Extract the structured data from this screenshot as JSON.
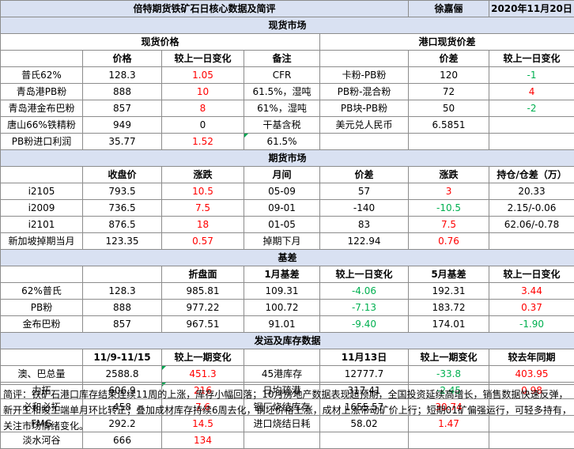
{
  "header": {
    "title": "倍特期货铁矿石日核心数据及简评",
    "author": "徐嘉俪",
    "date": "2020年11月20日"
  },
  "spot": {
    "section": "现货市场",
    "left_title": "现货价格",
    "right_title": "港口现货价差",
    "cols": [
      "",
      "价格",
      "较上一日变化",
      "备注",
      "",
      "价差",
      "较上一日变化"
    ],
    "rows": [
      [
        "普氏62%",
        "128.3",
        "1.05",
        "CFR",
        "卡粉-PB粉",
        "120",
        "-1"
      ],
      [
        "青岛港PB粉",
        "888",
        "10",
        "61.5%，湿吨",
        "PB粉-混合粉",
        "72",
        "4"
      ],
      [
        "青岛港金布巴粉",
        "857",
        "8",
        "61%，湿吨",
        "PB块-PB粉",
        "50",
        "-2"
      ],
      [
        "唐山66%铁精粉",
        "949",
        "0",
        "干基含税",
        "美元兑人民币",
        "6.5851",
        ""
      ],
      [
        "PB粉进口利润",
        "35.77",
        "1.52",
        "61.5%",
        "",
        "",
        ""
      ]
    ]
  },
  "futures": {
    "section": "期货市场",
    "cols": [
      "",
      "收盘价",
      "涨跌",
      "月间",
      "价差",
      "涨跌",
      "持仓/仓差（万）"
    ],
    "rows": [
      [
        "i2105",
        "793.5",
        "10.5",
        "05-09",
        "57",
        "3",
        "20.33"
      ],
      [
        "i2009",
        "736.5",
        "7.5",
        "09-01",
        "-140",
        "-10.5",
        "2.15/-0.06"
      ],
      [
        "i2101",
        "876.5",
        "18",
        "01-05",
        "83",
        "7.5",
        "62.06/-0.78"
      ],
      [
        "新加坡掉期当月",
        "123.35",
        "0.57",
        "掉期下月",
        "122.94",
        "0.76",
        ""
      ]
    ]
  },
  "basis": {
    "section": "基差",
    "cols": [
      "",
      "",
      "折盘面",
      "1月基差",
      "较上一日变化",
      "5月基差",
      "较上一日变化"
    ],
    "rows": [
      [
        "62%普氏",
        "128.3",
        "985.81",
        "109.31",
        "-4.06",
        "192.31",
        "3.44"
      ],
      [
        "PB粉",
        "888",
        "977.22",
        "100.72",
        "-7.13",
        "183.72",
        "0.37"
      ],
      [
        "金布巴粉",
        "857",
        "967.51",
        "91.01",
        "-9.40",
        "174.01",
        "-1.90"
      ]
    ]
  },
  "inventory": {
    "section": "发运及库存数据",
    "cols": [
      "",
      "11/9-11/15",
      "较上一期变化",
      "",
      "11月13日",
      "较上一期变化",
      "较去年同期"
    ],
    "rows": [
      [
        "澳、巴总量",
        "2588.8",
        "451.3",
        "45港库存",
        "12777.7",
        "-33.8",
        "403.95"
      ],
      [
        "力拓",
        "606.9",
        "216",
        "日均疏港",
        "317.41",
        "-2.45",
        "0.98"
      ],
      [
        "必和必拓",
        "458",
        "7.6",
        "钢厂烧结库存",
        "1655.57",
        "30.74",
        ""
      ],
      [
        "FMG",
        "292.2",
        "14.5",
        "进口烧结日耗",
        "58.02",
        "1.47",
        ""
      ],
      [
        "淡水河谷",
        "666",
        "134",
        "",
        "",
        "",
        ""
      ]
    ]
  },
  "note": "简评：铁矿石港口库存结束连续11周的上涨，库存小幅回落；10月房地产数据表现超预期，全国投资延续高增长，销售数据快速反弹，新开工和竣工端单月环比转正；叠加成材库存持续6周去化，钢坯价格上涨，成材上涨带动矿价上行；短期01矿偏强运行，可轻多持有，关注市场情绪变化。",
  "colors": {
    "header_bg": "#d9e1f2",
    "up": "#ff0000",
    "down": "#00b050",
    "border": "#8c8c8c"
  }
}
